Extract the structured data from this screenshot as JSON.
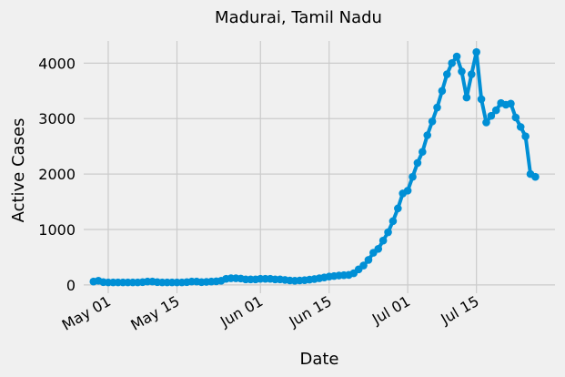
{
  "chart_data": {
    "type": "line",
    "title": "Madurai, Tamil Nadu",
    "xlabel": "Date",
    "ylabel": "Active Cases",
    "x_axis_type": "date",
    "xlim": [
      "2020-04-26",
      "2020-07-31"
    ],
    "ylim": [
      -150,
      4400
    ],
    "grid": true,
    "line_color": "#008fd5",
    "x_ticks": [
      {
        "date": "2020-05-01",
        "label": "May 01"
      },
      {
        "date": "2020-05-15",
        "label": "May 15"
      },
      {
        "date": "2020-06-01",
        "label": "Jun 01"
      },
      {
        "date": "2020-06-15",
        "label": "Jun 15"
      },
      {
        "date": "2020-07-01",
        "label": "Jul 01"
      },
      {
        "date": "2020-07-15",
        "label": "Jul 15"
      }
    ],
    "y_ticks": [
      0,
      1000,
      2000,
      3000,
      4000
    ],
    "series": [
      {
        "x": [
          "2020-04-28",
          "2020-04-29",
          "2020-04-30",
          "2020-05-01",
          "2020-05-02",
          "2020-05-03",
          "2020-05-04",
          "2020-05-05",
          "2020-05-06",
          "2020-05-07",
          "2020-05-08",
          "2020-05-09",
          "2020-05-10",
          "2020-05-11",
          "2020-05-12",
          "2020-05-13",
          "2020-05-14",
          "2020-05-15",
          "2020-05-16",
          "2020-05-17",
          "2020-05-18",
          "2020-05-19",
          "2020-05-20",
          "2020-05-21",
          "2020-05-22",
          "2020-05-23",
          "2020-05-24",
          "2020-05-25",
          "2020-05-26",
          "2020-05-27",
          "2020-05-28",
          "2020-05-29",
          "2020-05-30",
          "2020-05-31",
          "2020-06-01",
          "2020-06-02",
          "2020-06-03",
          "2020-06-04",
          "2020-06-05",
          "2020-06-06",
          "2020-06-07",
          "2020-06-08",
          "2020-06-09",
          "2020-06-10",
          "2020-06-11",
          "2020-06-12",
          "2020-06-13",
          "2020-06-14",
          "2020-06-15",
          "2020-06-16",
          "2020-06-17",
          "2020-06-18",
          "2020-06-19",
          "2020-06-20",
          "2020-06-21",
          "2020-06-22",
          "2020-06-23",
          "2020-06-24",
          "2020-06-25",
          "2020-06-26",
          "2020-06-27",
          "2020-06-28",
          "2020-06-29",
          "2020-06-30",
          "2020-07-01",
          "2020-07-02",
          "2020-07-03",
          "2020-07-04",
          "2020-07-05",
          "2020-07-06",
          "2020-07-07",
          "2020-07-08",
          "2020-07-09",
          "2020-07-10",
          "2020-07-11",
          "2020-07-12",
          "2020-07-13",
          "2020-07-14",
          "2020-07-15",
          "2020-07-16",
          "2020-07-17",
          "2020-07-18",
          "2020-07-19",
          "2020-07-20",
          "2020-07-21",
          "2020-07-22",
          "2020-07-23",
          "2020-07-24",
          "2020-07-25",
          "2020-07-26",
          "2020-07-27"
        ],
        "y": [
          60,
          75,
          50,
          45,
          45,
          45,
          45,
          45,
          45,
          45,
          50,
          60,
          60,
          50,
          45,
          45,
          45,
          45,
          45,
          50,
          60,
          60,
          50,
          55,
          60,
          65,
          75,
          110,
          120,
          120,
          115,
          100,
          100,
          100,
          110,
          110,
          110,
          100,
          100,
          90,
          80,
          75,
          80,
          85,
          95,
          105,
          120,
          135,
          150,
          160,
          170,
          175,
          180,
          210,
          280,
          350,
          450,
          580,
          650,
          800,
          950,
          1150,
          1380,
          1650,
          1700,
          1950,
          2200,
          2400,
          2700,
          2950,
          3200,
          3500,
          3800,
          4000,
          4120,
          3850,
          3380,
          3800,
          4200,
          3350,
          2930,
          3050,
          3150,
          3280,
          3250,
          3270,
          3020,
          2850,
          2680,
          2000,
          1950
        ]
      }
    ]
  }
}
